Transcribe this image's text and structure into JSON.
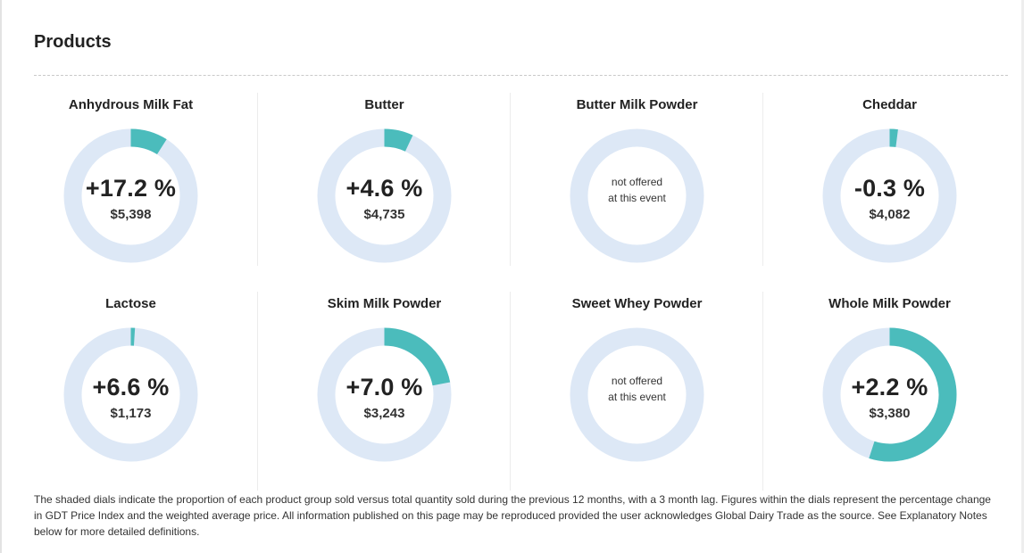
{
  "page": {
    "title": "Products"
  },
  "colors": {
    "filled": "#4bbcbc",
    "track": "#dde8f6"
  },
  "products": [
    {
      "name": "Anhydrous Milk Fat",
      "change": "+17.2 %",
      "price": "$5,398",
      "offered": true,
      "share": 0.09,
      "not_offered_line1": "",
      "not_offered_line2": ""
    },
    {
      "name": "Butter",
      "change": "+4.6 %",
      "price": "$4,735",
      "offered": true,
      "share": 0.07,
      "not_offered_line1": "",
      "not_offered_line2": ""
    },
    {
      "name": "Butter Milk Powder",
      "change": "",
      "price": "",
      "offered": false,
      "share": 0,
      "not_offered_line1": "not offered",
      "not_offered_line2": "at this event"
    },
    {
      "name": "Cheddar",
      "change": "-0.3 %",
      "price": "$4,082",
      "offered": true,
      "share": 0.02,
      "not_offered_line1": "",
      "not_offered_line2": ""
    },
    {
      "name": "Lactose",
      "change": "+6.6 %",
      "price": "$1,173",
      "offered": true,
      "share": 0.01,
      "not_offered_line1": "",
      "not_offered_line2": ""
    },
    {
      "name": "Skim Milk Powder",
      "change": "+7.0 %",
      "price": "$3,243",
      "offered": true,
      "share": 0.22,
      "not_offered_line1": "",
      "not_offered_line2": ""
    },
    {
      "name": "Sweet Whey Powder",
      "change": "",
      "price": "",
      "offered": false,
      "share": 0,
      "not_offered_line1": "not offered",
      "not_offered_line2": "at this event"
    },
    {
      "name": "Whole Milk Powder",
      "change": "+2.2 %",
      "price": "$3,380",
      "offered": true,
      "share": 0.55,
      "not_offered_line1": "",
      "not_offered_line2": ""
    }
  ],
  "footnote": "The shaded dials indicate the proportion of each product group sold versus total quantity sold during the previous 12 months, with a 3 month lag. Figures within the dials represent the percentage change in GDT Price Index and the weighted average price. All information published on this page may be reproduced provided the user acknowledges Global Dairy Trade as the source. See Explanatory Notes below for more detailed definitions."
}
